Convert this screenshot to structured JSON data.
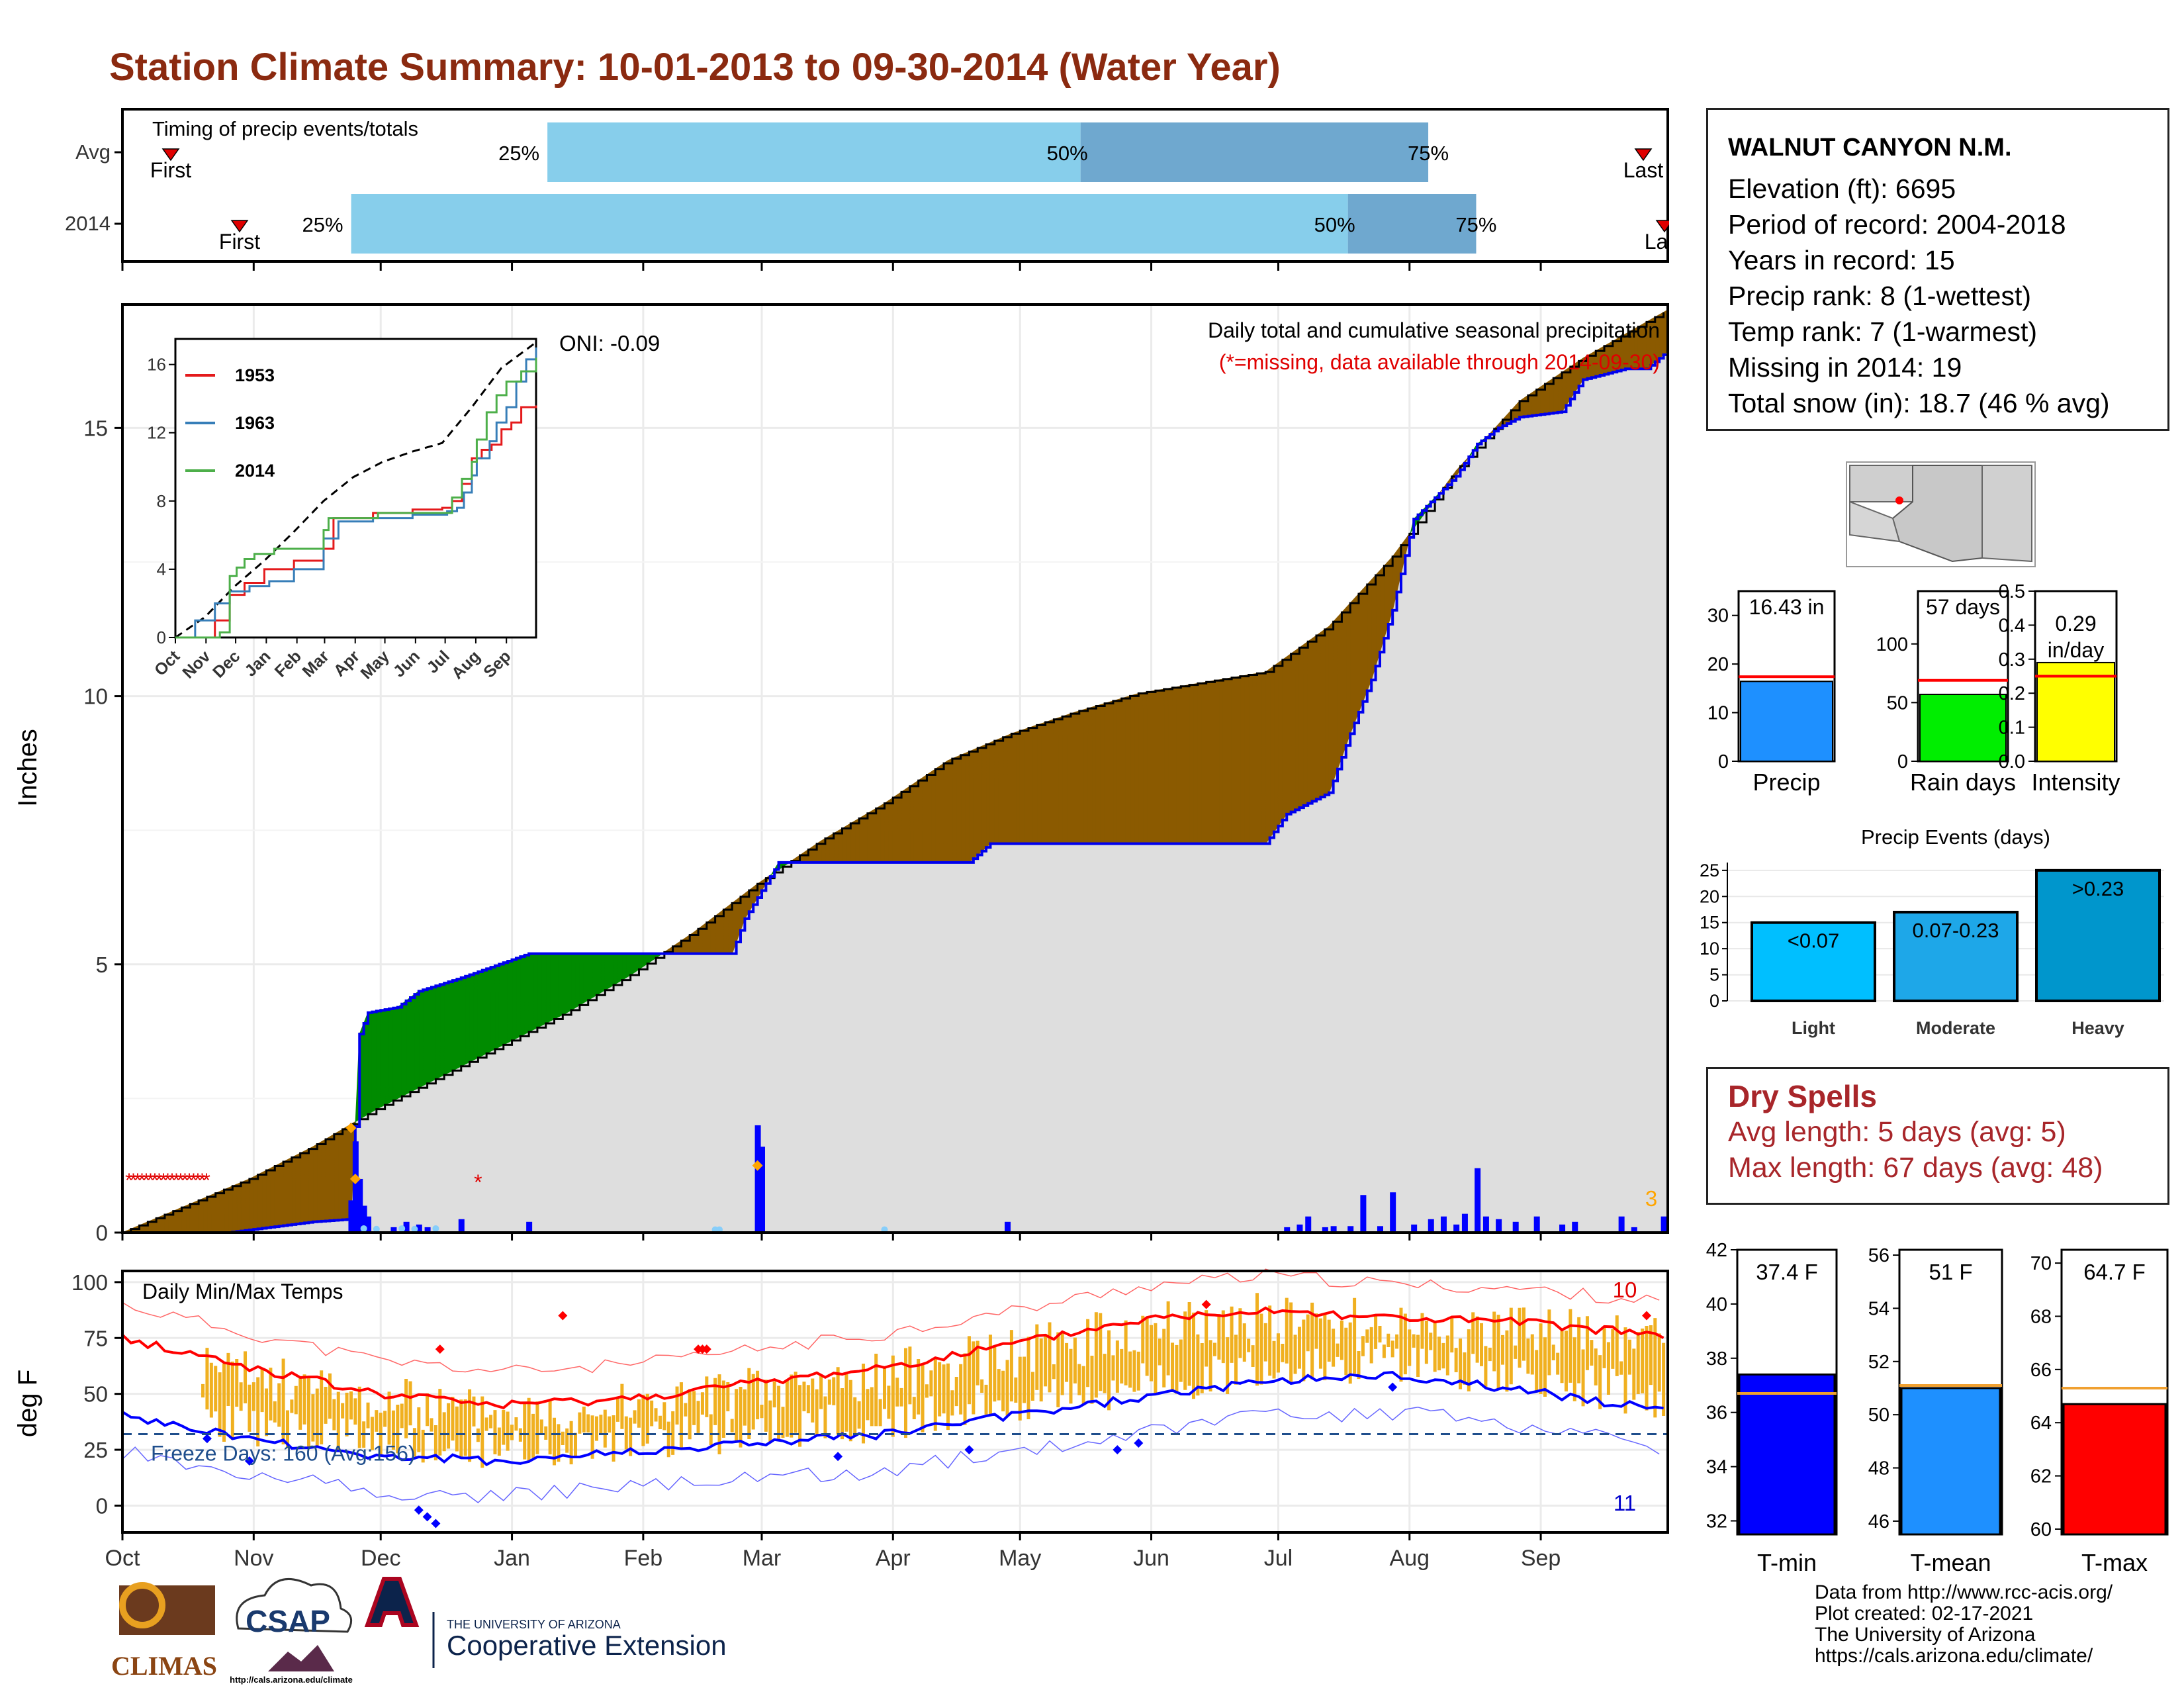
{
  "title": "Station Climate Summary: 10-01-2013 to 09-30-2014 (Water Year)",
  "timing": {
    "label": "Timing of precip events/totals",
    "rows": [
      {
        "name": "Avg",
        "first_label": "First",
        "last_label": "Last",
        "first_date": "Oct 25",
        "last_date": "Sep 29",
        "p25": 0.275,
        "p50": 0.62,
        "p75": 0.845
      },
      {
        "name": "2014",
        "first_label": "First",
        "last_label": "Last",
        "first_date": "Nov 30",
        "last_date": "Sep 30",
        "p25": 0.148,
        "p50": 0.793,
        "p75": 0.876
      }
    ],
    "pct_labels": [
      "25%",
      "50%",
      "75%"
    ]
  },
  "main_chart": {
    "ylabel": "Inches",
    "subtitle": "Daily total and cumulative seasonal precipitation",
    "missing_note": "(*=missing, data available through 2014-09-30)",
    "oni": "ONI: -0.09",
    "corner_count": "3",
    "yticks": [
      "0",
      "5",
      "10",
      "15"
    ],
    "months": [
      "Oct",
      "Nov",
      "Dec",
      "Jan",
      "Feb",
      "Mar",
      "Apr",
      "May",
      "Jun",
      "Jul",
      "Aug",
      "Sep"
    ]
  },
  "inset": {
    "legend": [
      "1953",
      "1963",
      "2014"
    ],
    "yticks": [
      "0",
      "4",
      "8",
      "12",
      "16"
    ],
    "months": [
      "Oct",
      "Nov",
      "Dec",
      "Jan",
      "Feb",
      "Mar",
      "Apr",
      "May",
      "Jun",
      "Jul",
      "Aug",
      "Sep"
    ],
    "colors": {
      "1953": "#e41a1c",
      "1963": "#377eb8",
      "2014": "#4daf4a"
    }
  },
  "station": {
    "name": "WALNUT CANYON N.M.",
    "lines": [
      "Elevation (ft): 6695",
      "Period of record: 2004-2018",
      "Years in record: 15",
      "Precip rank: 8 (1-wettest)",
      "Temp rank: 7 (1-warmest)",
      "Missing in 2014: 19",
      "Total snow (in): 18.7 (46 % avg)"
    ]
  },
  "mini_bars": [
    {
      "label": "Precip",
      "value_text": "16.43 in",
      "value": 16.43,
      "avg": 17.4,
      "ymax": 35,
      "ticks": [
        "0",
        "10",
        "20",
        "30"
      ],
      "tick_vals": [
        0,
        10,
        20,
        30
      ],
      "color": "#1e90ff"
    },
    {
      "label": "Rain days",
      "value_text": "57 days",
      "value": 57,
      "avg": 69,
      "ymax": 145,
      "ticks": [
        "0",
        "50",
        "100"
      ],
      "tick_vals": [
        0,
        50,
        100
      ],
      "color": "#00ee00"
    },
    {
      "label": "Intensity",
      "value_text": "0.29 in/day",
      "value": 0.29,
      "avg": 0.25,
      "ymax": 0.5,
      "ticks": [
        "0.0",
        "0.1",
        "0.2",
        "0.3",
        "0.4",
        "0.5"
      ],
      "tick_vals": [
        0,
        0.1,
        0.2,
        0.3,
        0.4,
        0.5
      ],
      "color": "#ffff00"
    }
  ],
  "precip_events": {
    "title": "Precip Events (days)",
    "categories": [
      "Light",
      "Moderate",
      "Heavy"
    ],
    "bar_labels": [
      "<0.07",
      "0.07-0.23",
      ">0.23"
    ],
    "values": [
      15,
      17,
      25
    ],
    "yticks": [
      "0",
      "5",
      "10",
      "15",
      "20",
      "25"
    ]
  },
  "dry_spells": {
    "title": "Dry Spells",
    "avg": "Avg length: 5 days (avg: 5)",
    "max": "Max length: 67 days (avg: 48)"
  },
  "temp_chart": {
    "title": "Daily Min/Max Temps",
    "ylabel": "deg F",
    "freeze": "Freeze Days: 160 (Avg:156)",
    "count_hot": "10",
    "count_cold": "11",
    "yticks": [
      "0",
      "25",
      "50",
      "75",
      "100"
    ]
  },
  "temp_bars": [
    {
      "label": "T-min",
      "value_text": "37.4 F",
      "value": 37.4,
      "avg": 36.7,
      "ymin": 31.5,
      "ymax": 42,
      "ticks": [
        "32",
        "34",
        "36",
        "38",
        "40",
        "42"
      ],
      "tick_vals": [
        32,
        34,
        36,
        38,
        40,
        42
      ],
      "color": "#0000ff"
    },
    {
      "label": "T-mean",
      "value_text": "51 F",
      "value": 51.0,
      "avg": 51.1,
      "ymin": 45.5,
      "ymax": 56.2,
      "ticks": [
        "46",
        "48",
        "50",
        "52",
        "54",
        "56"
      ],
      "tick_vals": [
        46,
        48,
        50,
        52,
        54,
        56
      ],
      "color": "#1e90ff"
    },
    {
      "label": "T-max",
      "value_text": "64.7 F",
      "value": 64.7,
      "avg": 65.3,
      "ymin": 59.8,
      "ymax": 70.5,
      "ticks": [
        "60",
        "62",
        "64",
        "66",
        "68",
        "70"
      ],
      "tick_vals": [
        60,
        62,
        64,
        66,
        68,
        70
      ],
      "color": "#ff0000"
    }
  ],
  "footer": [
    "Data from http://www.rcc-acis.org/",
    "Plot created: 02-17-2021",
    "The University of Arizona",
    "https://cals.arizona.edu/climate/"
  ],
  "logos": {
    "climas": "CLIMAS",
    "csap": "CSAP",
    "csap_url": "http://cals.arizona.edu/climate",
    "ua_small": "THE UNIVERSITY OF ARIZONA",
    "ua_big": "Cooperative Extension"
  },
  "chart_data": [
    {
      "type": "area",
      "title": "Daily total and cumulative seasonal precipitation",
      "ylabel": "Inches",
      "ylim": [
        0,
        17.3
      ],
      "x_unit": "day of water year (Oct 1 = 0)",
      "series": [
        {
          "name": "Avg",
          "x": [
            0,
            15,
            30,
            45,
            60,
            75,
            90,
            105,
            120,
            135,
            150,
            165,
            180,
            195,
            210,
            225,
            240,
            255,
            270,
            285,
            300,
            315,
            330,
            345,
            365
          ],
          "y": [
            0,
            0.5,
            1.0,
            1.6,
            2.3,
            2.9,
            3.5,
            4.1,
            4.8,
            5.6,
            6.5,
            7.3,
            8.0,
            8.8,
            9.3,
            9.7,
            10.05,
            10.25,
            10.45,
            11.3,
            12.6,
            14.2,
            15.5,
            16.3,
            17.2
          ]
        },
        {
          "name": "2014",
          "x": [
            0,
            25,
            45,
            54,
            56,
            58,
            65,
            70,
            80,
            96,
            103,
            110,
            130,
            144,
            147,
            155,
            200,
            205,
            240,
            270,
            275,
            285,
            290,
            295,
            300,
            305,
            315,
            320,
            325,
            330,
            340,
            345,
            355,
            360,
            365
          ],
          "y": [
            0,
            0,
            0.2,
            0.25,
            3.7,
            4.1,
            4.2,
            4.5,
            4.75,
            5.2,
            5.2,
            5.2,
            5.2,
            5.2,
            5.85,
            6.9,
            6.9,
            7.25,
            7.25,
            7.25,
            7.8,
            8.2,
            9.3,
            10.3,
            11.6,
            13.3,
            14.1,
            14.7,
            15.0,
            15.2,
            15.3,
            15.9,
            16.1,
            16.1,
            16.43
          ]
        }
      ]
    },
    {
      "type": "line",
      "title": "Daily Min/Max Temps",
      "ylabel": "deg F",
      "ylim": [
        -12,
        105
      ],
      "freeze_threshold": 32,
      "series": [
        {
          "name": "Avg Tmax",
          "x": [
            0,
            30,
            60,
            90,
            120,
            150,
            180,
            210,
            240,
            270,
            300,
            330,
            365
          ],
          "y": [
            75,
            62,
            50,
            45,
            48,
            55,
            62,
            72,
            83,
            88,
            84,
            82,
            76
          ]
        },
        {
          "name": "Avg Tmin",
          "x": [
            0,
            30,
            60,
            90,
            120,
            150,
            180,
            210,
            240,
            270,
            300,
            330,
            365
          ],
          "y": [
            40,
            30,
            22,
            20,
            24,
            28,
            32,
            40,
            48,
            56,
            58,
            52,
            42
          ]
        }
      ]
    }
  ]
}
